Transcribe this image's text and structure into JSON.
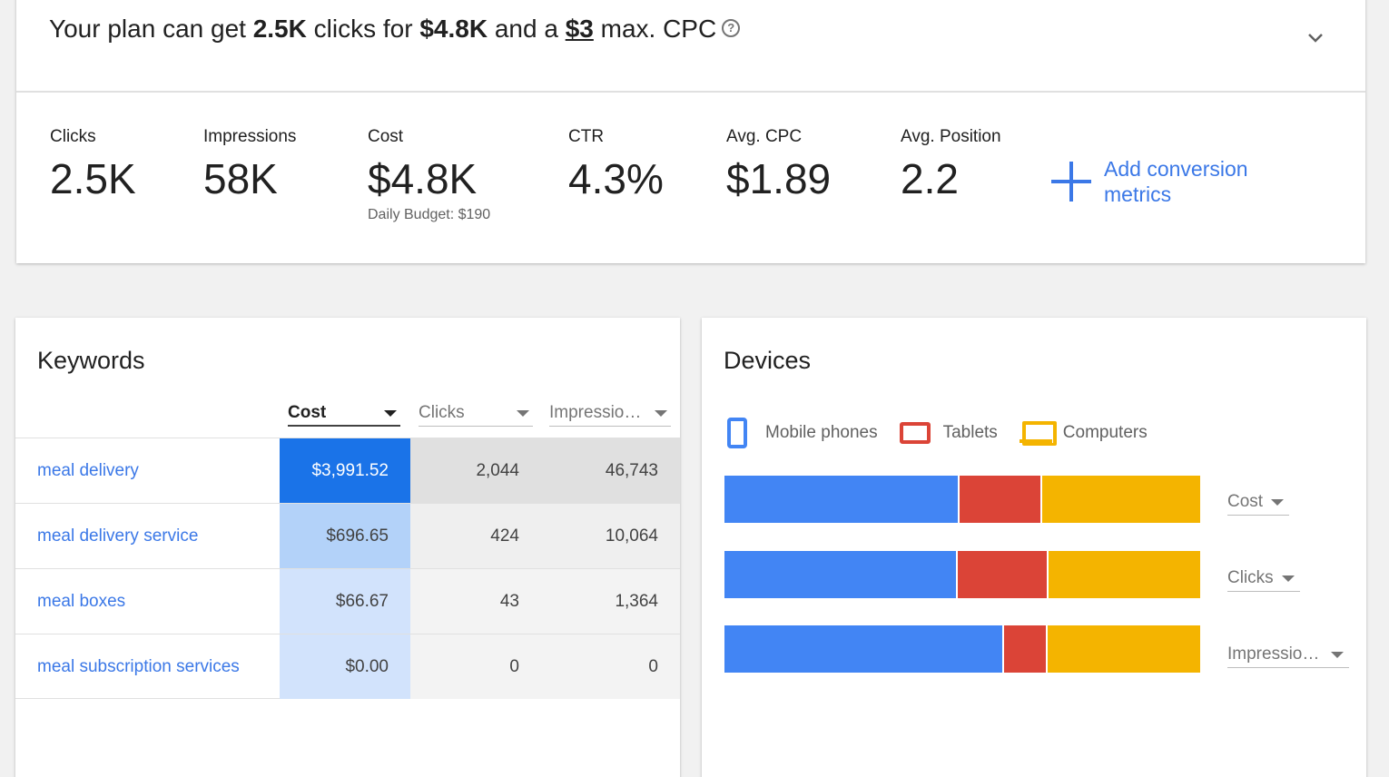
{
  "summary": {
    "headline_prefix": "Your plan can get ",
    "clicks": "2.5K",
    "mid1": " clicks for ",
    "cost": "$4.8K",
    "mid2": " and a ",
    "max_cpc": "$3",
    "suffix": " max. CPC",
    "help_glyph": "?",
    "expand_icon": "chevron-down-icon"
  },
  "metrics": [
    {
      "label": "Clicks",
      "value": "2.5K"
    },
    {
      "label": "Impressions",
      "value": "58K"
    },
    {
      "label": "Cost",
      "value": "$4.8K",
      "sub": "Daily Budget: $190"
    },
    {
      "label": "CTR",
      "value": "4.3%"
    },
    {
      "label": "Avg. CPC",
      "value": "$1.89"
    },
    {
      "label": "Avg. Position",
      "value": "2.2"
    }
  ],
  "add_conversion": {
    "label": "Add conversion metrics",
    "icon": "plus-icon",
    "color": "#3b78e7"
  },
  "keywords": {
    "title": "Keywords",
    "columns": [
      {
        "label": "Cost",
        "active": true
      },
      {
        "label": "Clicks"
      },
      {
        "label": "Impressio…"
      }
    ],
    "rows": [
      {
        "keyword": "meal delivery",
        "cost": "$3,991.52",
        "clicks": "2,044",
        "impressions": "46,743",
        "cost_bg": "#1a73e8",
        "cost_fg": "#ffffff",
        "other_bg": "#e0e0e0"
      },
      {
        "keyword": "meal delivery service",
        "cost": "$696.65",
        "clicks": "424",
        "impressions": "10,064",
        "cost_bg": "#b3d2f9",
        "cost_fg": "#424242",
        "other_bg": "#efefef"
      },
      {
        "keyword": "meal boxes",
        "cost": "$66.67",
        "clicks": "43",
        "impressions": "1,364",
        "cost_bg": "#d2e3fc",
        "cost_fg": "#424242",
        "other_bg": "#f3f3f3"
      },
      {
        "keyword": "meal subscription services",
        "cost": "$0.00",
        "clicks": "0",
        "impressions": "0",
        "cost_bg": "#d2e3fc",
        "cost_fg": "#424242",
        "other_bg": "#f3f3f3"
      }
    ]
  },
  "devices": {
    "title": "Devices",
    "legend": [
      {
        "label": "Mobile phones",
        "icon": "mobile-phone-icon",
        "color": "#4285f4"
      },
      {
        "label": "Tablets",
        "icon": "tablet-icon",
        "color": "#db4437"
      },
      {
        "label": "Computers",
        "icon": "computer-icon",
        "color": "#f4b400"
      }
    ],
    "bars": [
      {
        "metric": "Cost",
        "shares": [
          0.494,
          0.174,
          0.332
        ]
      },
      {
        "metric": "Clicks",
        "shares": [
          0.491,
          0.19,
          0.319
        ]
      },
      {
        "metric": "Impressio…",
        "shares": [
          0.588,
          0.092,
          0.32
        ]
      }
    ]
  }
}
